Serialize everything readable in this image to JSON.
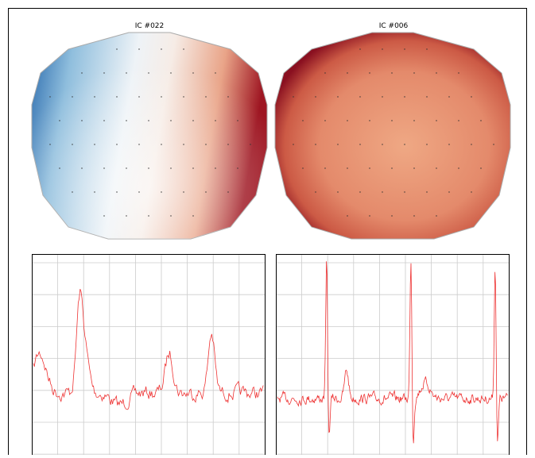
{
  "panels": [
    {
      "title": "IC #022"
    },
    {
      "title": "IC #006"
    }
  ]
}
